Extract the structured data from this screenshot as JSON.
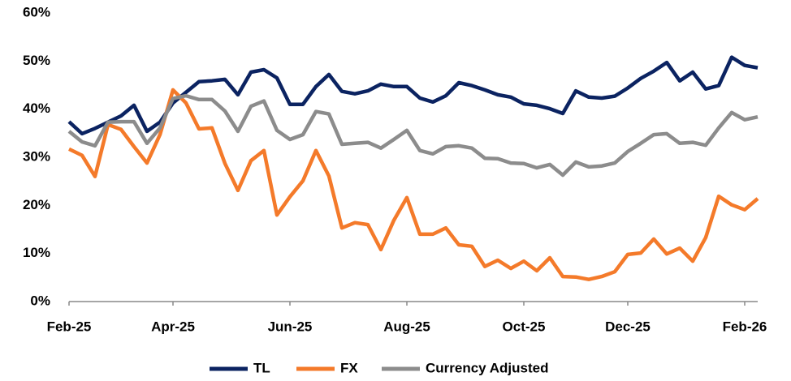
{
  "chart_data": {
    "type": "line",
    "categories": [
      "Feb-25",
      null,
      null,
      null,
      null,
      null,
      null,
      null,
      "Apr-25",
      null,
      null,
      null,
      null,
      null,
      null,
      null,
      null,
      "Jun-25",
      null,
      null,
      null,
      null,
      null,
      null,
      null,
      null,
      "Aug-25",
      null,
      null,
      null,
      null,
      null,
      null,
      null,
      null,
      "Oct-25",
      null,
      null,
      null,
      null,
      null,
      null,
      null,
      "Dec-25",
      null,
      null,
      null,
      null,
      null,
      null,
      null,
      null,
      "Feb-26",
      null
    ],
    "series": [
      {
        "name": "TL",
        "color": "#0b2361",
        "values": [
          37.4,
          34.9,
          36,
          37.3,
          38.6,
          40.8,
          35.4,
          37.3,
          41.3,
          43.5,
          45.7,
          45.9,
          46.2,
          43,
          47.7,
          48.2,
          46.5,
          41,
          41,
          44.7,
          47.2,
          43.7,
          43.2,
          43.8,
          45.2,
          44.7,
          44.7,
          42.3,
          41.5,
          42.8,
          45.5,
          44.9,
          44,
          43,
          42.5,
          41.1,
          40.8,
          40.1,
          39.1,
          43.8,
          42.5,
          42.3,
          42.7,
          44.4,
          46.4,
          47.9,
          49.7,
          45.9,
          47.7,
          44.2,
          44.9,
          50.8,
          49.1,
          48.6
        ]
      },
      {
        "name": "FX",
        "color": "#f47a2a",
        "values": [
          31.7,
          30.4,
          26,
          36.8,
          35.8,
          32.2,
          28.8,
          34.7,
          44,
          41.3,
          35.9,
          36.1,
          28.7,
          23.1,
          29.3,
          31.4,
          18,
          21.8,
          25.1,
          31.4,
          26.1,
          15.3,
          16.4,
          16,
          10.8,
          16.9,
          21.6,
          14,
          14,
          15.3,
          11.8,
          11.5,
          7.3,
          8.6,
          6.9,
          8.4,
          6.4,
          9.1,
          5.2,
          5.1,
          4.6,
          5.2,
          6.2,
          9.8,
          10.1,
          13,
          9.9,
          11.1,
          8.4,
          13.3,
          21.9,
          20.1,
          19.1,
          21.4
        ]
      },
      {
        "name": "Currency Adjusted",
        "color": "#8c8c8c",
        "values": [
          35.4,
          33.2,
          32.4,
          37.3,
          37.4,
          37.4,
          32.9,
          36.1,
          42.2,
          42.8,
          42,
          42,
          39.6,
          35.4,
          40.6,
          41.7,
          35.6,
          33.7,
          34.7,
          39.5,
          39,
          32.7,
          32.9,
          33.1,
          31.9,
          33.7,
          35.6,
          31.4,
          30.7,
          32.2,
          32.4,
          31.9,
          29.8,
          29.7,
          28.8,
          28.7,
          27.8,
          28.5,
          26.3,
          29,
          28,
          28.2,
          28.8,
          31.2,
          32.9,
          34.7,
          34.9,
          32.9,
          33.1,
          32.5,
          36.1,
          39.3,
          37.8,
          38.4
        ]
      }
    ],
    "ylim": [
      0,
      60
    ],
    "yticks": [
      {
        "value": 0,
        "label": "0%"
      },
      {
        "value": 10,
        "label": "10%"
      },
      {
        "value": 20,
        "label": "20%"
      },
      {
        "value": 30,
        "label": "30%"
      },
      {
        "value": 40,
        "label": "40%"
      },
      {
        "value": 50,
        "label": "50%"
      },
      {
        "value": 60,
        "label": "60%"
      }
    ],
    "legend": "bottom"
  }
}
